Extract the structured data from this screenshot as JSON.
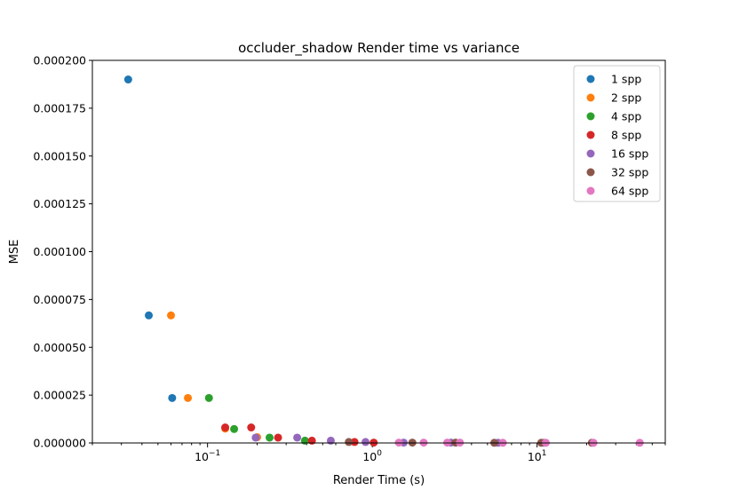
{
  "chart_data": {
    "type": "scatter",
    "title": "occluder_shadow Render time vs variance",
    "xlabel": "Render Time (s)",
    "ylabel": "MSE",
    "xscale": "log",
    "xlim": [
      0.02,
      60
    ],
    "ylim": [
      0,
      0.0002
    ],
    "grid": false,
    "legend_position": "top-right",
    "x_ticks": [
      {
        "value": 0.1,
        "base": "10",
        "exp": "−1"
      },
      {
        "value": 1,
        "base": "10",
        "exp": "0"
      },
      {
        "value": 10,
        "base": "10",
        "exp": "1"
      }
    ],
    "y_ticks": [
      {
        "value": 0,
        "label": "0.000000"
      },
      {
        "value": 2.5e-05,
        "label": "0.000025"
      },
      {
        "value": 5e-05,
        "label": "0.000050"
      },
      {
        "value": 7.5e-05,
        "label": "0.000075"
      },
      {
        "value": 0.0001,
        "label": "0.000100"
      },
      {
        "value": 0.000125,
        "label": "0.000125"
      },
      {
        "value": 0.00015,
        "label": "0.000150"
      },
      {
        "value": 0.000175,
        "label": "0.000175"
      },
      {
        "value": 0.0002,
        "label": "0.000200"
      }
    ],
    "series": [
      {
        "name": "1 spp",
        "color": "#1f77b4",
        "points": [
          [
            0.033,
            0.00019
          ],
          [
            0.044,
            6.67e-05
          ],
          [
            0.061,
            2.35e-05
          ]
        ]
      },
      {
        "name": "2 spp",
        "color": "#ff7f0e",
        "points": [
          [
            0.06,
            6.67e-05
          ],
          [
            0.076,
            2.35e-05
          ],
          [
            0.128,
            7.5e-06
          ],
          [
            0.2,
            3e-06
          ]
        ]
      },
      {
        "name": "4 spp",
        "color": "#2ca02c",
        "points": [
          [
            0.102,
            2.35e-05
          ],
          [
            0.145,
            7.3e-06
          ],
          [
            0.238,
            2.8e-06
          ],
          [
            0.39,
            1.2e-06
          ]
        ]
      },
      {
        "name": "8 spp",
        "color": "#d62728",
        "points": [
          [
            0.128,
            8.1e-06
          ],
          [
            0.184,
            8.1e-06
          ],
          [
            0.268,
            2.8e-06
          ],
          [
            0.43,
            1.2e-06
          ],
          [
            0.78,
            5e-07
          ],
          [
            1.02,
            2e-07
          ]
        ]
      },
      {
        "name": "16 spp",
        "color": "#9467bd",
        "points": [
          [
            0.196,
            2.8e-06
          ],
          [
            0.35,
            2.8e-06
          ],
          [
            0.56,
            1.2e-06
          ],
          [
            0.91,
            5e-07
          ],
          [
            1.55,
            2e-07
          ],
          [
            3.0,
            2e-07
          ],
          [
            5.8,
            1e-07
          ],
          [
            11.0,
            1e-07
          ]
        ]
      },
      {
        "name": "32 spp",
        "color": "#8c564b",
        "points": [
          [
            0.72,
            5e-07
          ],
          [
            1.75,
            2e-07
          ],
          [
            3.2,
            2e-07
          ],
          [
            5.5,
            1e-07
          ],
          [
            10.6,
            1e-07
          ],
          [
            21.5,
            1e-07
          ]
        ]
      },
      {
        "name": "64 spp",
        "color": "#e377c2",
        "points": [
          [
            1.45,
            2e-07
          ],
          [
            2.05,
            2e-07
          ],
          [
            2.85,
            2e-07
          ],
          [
            3.4,
            2e-07
          ],
          [
            6.2,
            1e-07
          ],
          [
            11.3,
            1e-07
          ],
          [
            22.0,
            1e-07
          ],
          [
            42.0,
            1e-07
          ]
        ]
      }
    ]
  }
}
